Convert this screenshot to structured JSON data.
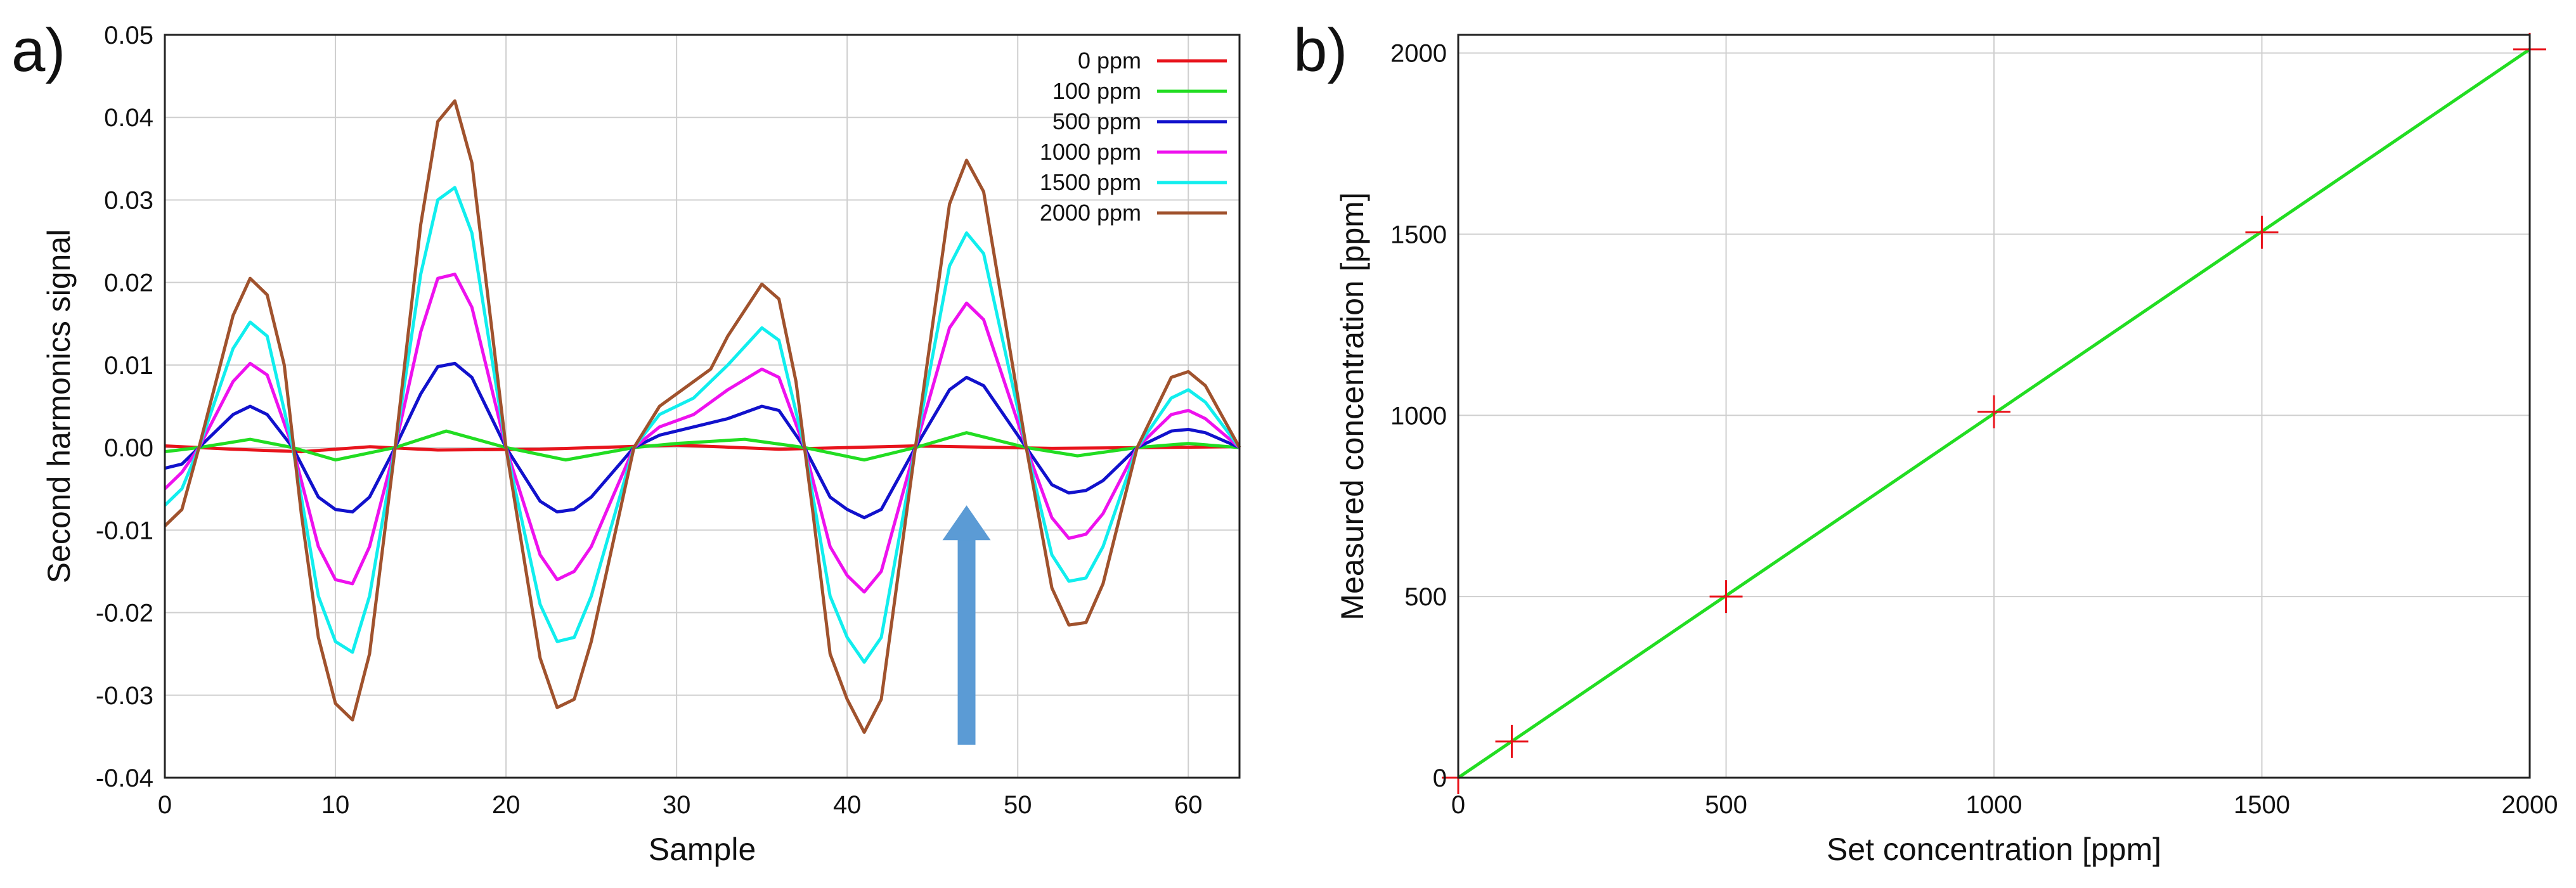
{
  "panels": {
    "a_label": "a)",
    "b_label": "b)"
  },
  "colors": {
    "0 ppm": "#e8141c",
    "100 ppm": "#22dd22",
    "500 ppm": "#1111cc",
    "1000 ppm": "#ee11ee",
    "1500 ppm": "#11eeee",
    "2000 ppm": "#a0522d",
    "arrow": "#5b9bd5",
    "fit_line": "#22dd22",
    "markers": "#e8141c"
  },
  "chart_data": [
    {
      "type": "line",
      "title": "",
      "xlabel": "Sample",
      "ylabel": "Second harmonics signal",
      "xlim": [
        0,
        63
      ],
      "ylim": [
        -0.04,
        0.05
      ],
      "xticks": [
        "0",
        "10",
        "20",
        "30",
        "40",
        "50",
        "60"
      ],
      "yticks": [
        "-0.04",
        "-0.03",
        "-0.02",
        "-0.01",
        "0.00",
        "0.01",
        "0.02",
        "0.03",
        "0.04",
        "0.05"
      ],
      "legend_position": "top-right",
      "grid": true,
      "annotation": "upward arrow near sample 47",
      "arrow": {
        "x": 47,
        "y_start": -0.036,
        "y_end": -0.007
      },
      "series": [
        {
          "name": "0 ppm",
          "values": [
            [
              0,
              0.0002
            ],
            [
              4,
              -0.0002
            ],
            [
              8,
              -0.0005
            ],
            [
              12,
              0.0001
            ],
            [
              16,
              -0.0003
            ],
            [
              22,
              -0.0002
            ],
            [
              30,
              0.0003
            ],
            [
              36,
              -0.0002
            ],
            [
              44,
              0.0002
            ],
            [
              52,
              -0.0001
            ],
            [
              63,
              0.0001
            ]
          ]
        },
        {
          "name": "100 ppm",
          "values": [
            [
              0,
              -0.0005
            ],
            [
              2,
              0
            ],
            [
              5,
              0.001
            ],
            [
              7.5,
              0
            ],
            [
              10,
              -0.0015
            ],
            [
              13.5,
              0
            ],
            [
              16.5,
              0.002
            ],
            [
              20,
              0
            ],
            [
              23.5,
              -0.0015
            ],
            [
              27.5,
              0
            ],
            [
              30,
              0.0005
            ],
            [
              34,
              0.001
            ],
            [
              37.5,
              0
            ],
            [
              41,
              -0.0015
            ],
            [
              44,
              0
            ],
            [
              47,
              0.0018
            ],
            [
              50.5,
              0
            ],
            [
              53.5,
              -0.001
            ],
            [
              57,
              0
            ],
            [
              60,
              0.0005
            ],
            [
              63,
              0
            ]
          ]
        },
        {
          "name": "500 ppm",
          "values": [
            [
              0,
              -0.0025
            ],
            [
              1,
              -0.002
            ],
            [
              2,
              0
            ],
            [
              4,
              0.004
            ],
            [
              5,
              0.005
            ],
            [
              6,
              0.004
            ],
            [
              7.5,
              0
            ],
            [
              9,
              -0.006
            ],
            [
              10,
              -0.0075
            ],
            [
              11,
              -0.0078
            ],
            [
              12,
              -0.006
            ],
            [
              13.5,
              0
            ],
            [
              15,
              0.0065
            ],
            [
              16,
              0.0098
            ],
            [
              17,
              0.0102
            ],
            [
              18,
              0.0085
            ],
            [
              20,
              0
            ],
            [
              22,
              -0.0065
            ],
            [
              23,
              -0.0078
            ],
            [
              24,
              -0.0075
            ],
            [
              25,
              -0.006
            ],
            [
              27.5,
              0
            ],
            [
              29,
              0.0015
            ],
            [
              31,
              0.0025
            ],
            [
              33,
              0.0035
            ],
            [
              35,
              0.005
            ],
            [
              36,
              0.0045
            ],
            [
              37.5,
              0
            ],
            [
              39,
              -0.006
            ],
            [
              40,
              -0.0075
            ],
            [
              41,
              -0.0085
            ],
            [
              42,
              -0.0075
            ],
            [
              44,
              0
            ],
            [
              46,
              0.007
            ],
            [
              47,
              0.0085
            ],
            [
              48,
              0.0075
            ],
            [
              50.5,
              0
            ],
            [
              52,
              -0.0045
            ],
            [
              53,
              -0.0055
            ],
            [
              54,
              -0.0052
            ],
            [
              55,
              -0.004
            ],
            [
              57,
              0
            ],
            [
              59,
              0.002
            ],
            [
              60,
              0.0022
            ],
            [
              61,
              0.0018
            ],
            [
              63,
              0
            ]
          ]
        },
        {
          "name": "1000 ppm",
          "values": [
            [
              0,
              -0.005
            ],
            [
              1,
              -0.003
            ],
            [
              2,
              0
            ],
            [
              4,
              0.008
            ],
            [
              5,
              0.0102
            ],
            [
              6,
              0.0088
            ],
            [
              7.5,
              0
            ],
            [
              9,
              -0.012
            ],
            [
              10,
              -0.016
            ],
            [
              11,
              -0.0165
            ],
            [
              12,
              -0.012
            ],
            [
              13.5,
              0
            ],
            [
              15,
              0.014
            ],
            [
              16,
              0.0205
            ],
            [
              17,
              0.021
            ],
            [
              18,
              0.017
            ],
            [
              20,
              0
            ],
            [
              22,
              -0.013
            ],
            [
              23,
              -0.016
            ],
            [
              24,
              -0.015
            ],
            [
              25,
              -0.012
            ],
            [
              27.5,
              0
            ],
            [
              29,
              0.0025
            ],
            [
              31,
              0.004
            ],
            [
              33,
              0.007
            ],
            [
              35,
              0.0095
            ],
            [
              36,
              0.0085
            ],
            [
              37.5,
              0
            ],
            [
              39,
              -0.012
            ],
            [
              40,
              -0.0155
            ],
            [
              41,
              -0.0175
            ],
            [
              42,
              -0.015
            ],
            [
              44,
              0
            ],
            [
              46,
              0.0145
            ],
            [
              47,
              0.0175
            ],
            [
              48,
              0.0155
            ],
            [
              50.5,
              0
            ],
            [
              52,
              -0.0085
            ],
            [
              53,
              -0.011
            ],
            [
              54,
              -0.0105
            ],
            [
              55,
              -0.008
            ],
            [
              57,
              0
            ],
            [
              59,
              0.004
            ],
            [
              60,
              0.0045
            ],
            [
              61,
              0.0035
            ],
            [
              63,
              0
            ]
          ]
        },
        {
          "name": "1500 ppm",
          "values": [
            [
              0,
              -0.007
            ],
            [
              1,
              -0.005
            ],
            [
              2,
              0
            ],
            [
              4,
              0.012
            ],
            [
              5,
              0.0152
            ],
            [
              6,
              0.0135
            ],
            [
              7.5,
              0
            ],
            [
              9,
              -0.018
            ],
            [
              10,
              -0.0235
            ],
            [
              11,
              -0.0248
            ],
            [
              12,
              -0.018
            ],
            [
              13.5,
              0
            ],
            [
              15,
              0.021
            ],
            [
              16,
              0.03
            ],
            [
              17,
              0.0315
            ],
            [
              18,
              0.026
            ],
            [
              20,
              0
            ],
            [
              22,
              -0.019
            ],
            [
              23,
              -0.0235
            ],
            [
              24,
              -0.023
            ],
            [
              25,
              -0.018
            ],
            [
              27.5,
              0
            ],
            [
              29,
              0.004
            ],
            [
              31,
              0.006
            ],
            [
              33,
              0.01
            ],
            [
              35,
              0.0145
            ],
            [
              36,
              0.013
            ],
            [
              37.5,
              0
            ],
            [
              39,
              -0.018
            ],
            [
              40,
              -0.023
            ],
            [
              41,
              -0.026
            ],
            [
              42,
              -0.023
            ],
            [
              44,
              0
            ],
            [
              46,
              0.022
            ],
            [
              47,
              0.026
            ],
            [
              48,
              0.0235
            ],
            [
              50.5,
              0
            ],
            [
              52,
              -0.013
            ],
            [
              53,
              -0.0162
            ],
            [
              54,
              -0.0158
            ],
            [
              55,
              -0.012
            ],
            [
              57,
              0
            ],
            [
              59,
              0.006
            ],
            [
              60,
              0.007
            ],
            [
              61,
              0.0055
            ],
            [
              63,
              0
            ]
          ]
        },
        {
          "name": "2000 ppm",
          "values": [
            [
              0,
              -0.0095
            ],
            [
              1,
              -0.0075
            ],
            [
              2,
              0
            ],
            [
              4,
              0.016
            ],
            [
              5,
              0.0205
            ],
            [
              6,
              0.0185
            ],
            [
              7,
              0.01
            ],
            [
              8,
              -0.008
            ],
            [
              9,
              -0.023
            ],
            [
              10,
              -0.031
            ],
            [
              11,
              -0.033
            ],
            [
              12,
              -0.025
            ],
            [
              13.5,
              0
            ],
            [
              15,
              0.027
            ],
            [
              16,
              0.0395
            ],
            [
              17,
              0.042
            ],
            [
              18,
              0.0345
            ],
            [
              20,
              0
            ],
            [
              22,
              -0.0255
            ],
            [
              23,
              -0.0315
            ],
            [
              24,
              -0.0305
            ],
            [
              25,
              -0.0235
            ],
            [
              27.5,
              0
            ],
            [
              29,
              0.005
            ],
            [
              31,
              0.008
            ],
            [
              32,
              0.0095
            ],
            [
              33,
              0.0135
            ],
            [
              35,
              0.0198
            ],
            [
              36,
              0.018
            ],
            [
              37,
              0.008
            ],
            [
              38,
              -0.008
            ],
            [
              39,
              -0.025
            ],
            [
              40,
              -0.0305
            ],
            [
              41,
              -0.0345
            ],
            [
              42,
              -0.0305
            ],
            [
              44,
              0
            ],
            [
              46,
              0.0295
            ],
            [
              47,
              0.0348
            ],
            [
              48,
              0.031
            ],
            [
              50.5,
              0
            ],
            [
              52,
              -0.017
            ],
            [
              53,
              -0.0215
            ],
            [
              54,
              -0.0212
            ],
            [
              55,
              -0.0165
            ],
            [
              57,
              0
            ],
            [
              59,
              0.0085
            ],
            [
              60,
              0.0092
            ],
            [
              61,
              0.0075
            ],
            [
              63,
              0
            ]
          ]
        }
      ]
    },
    {
      "type": "scatter",
      "title": "",
      "xlabel": "Set concentration [ppm]",
      "ylabel": "Measured concentration [ppm]",
      "xlim": [
        0,
        2000
      ],
      "ylim": [
        0,
        2050
      ],
      "xticks": [
        "0",
        "500",
        "1000",
        "1500",
        "2000"
      ],
      "yticks": [
        "0",
        "500",
        "1000",
        "1500",
        "2000"
      ],
      "grid": true,
      "points": [
        [
          0,
          0
        ],
        [
          100,
          100
        ],
        [
          500,
          500
        ],
        [
          1000,
          1010
        ],
        [
          1500,
          1505
        ],
        [
          2000,
          2010
        ]
      ],
      "fit_line": [
        [
          0,
          0
        ],
        [
          2000,
          2010
        ]
      ]
    }
  ]
}
